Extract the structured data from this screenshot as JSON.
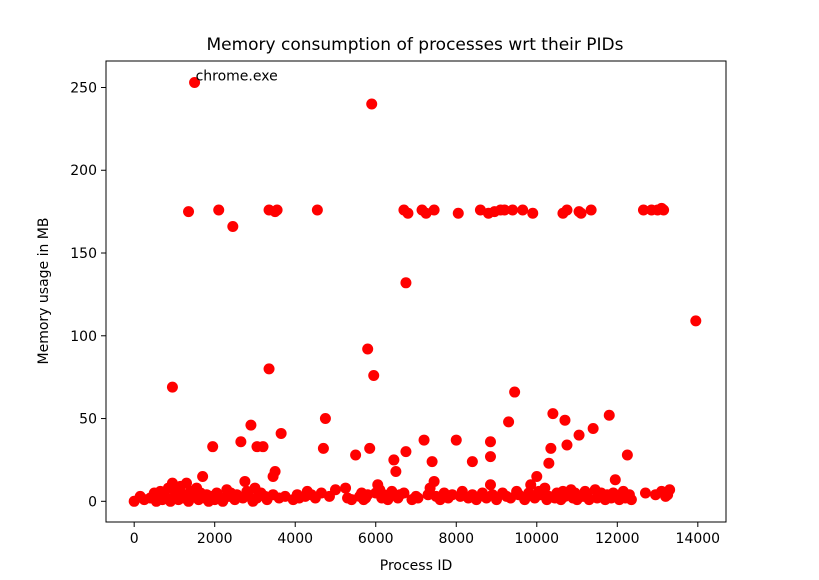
{
  "chart_data": {
    "type": "scatter",
    "title": "Memory consumption of processes wrt their PIDs",
    "xlabel": "Process ID",
    "ylabel": "Memory usage in MB",
    "xlim": [
      -700,
      14700
    ],
    "ylim": [
      -12.5,
      266
    ],
    "xticks": [
      0,
      2000,
      4000,
      6000,
      8000,
      10000,
      12000,
      14000
    ],
    "yticks": [
      0,
      50,
      100,
      150,
      200,
      250
    ],
    "grid": false,
    "marker_color": "#ff0000",
    "annotations": [
      {
        "text": "chrome.exe",
        "x": 1500,
        "y": 253
      }
    ],
    "series": [
      {
        "points": [
          [
            1500,
            253
          ],
          [
            5900,
            240
          ],
          [
            1350,
            175
          ],
          [
            2100,
            176
          ],
          [
            2450,
            166
          ],
          [
            3350,
            176
          ],
          [
            3500,
            175
          ],
          [
            3550,
            176
          ],
          [
            4550,
            176
          ],
          [
            6700,
            176
          ],
          [
            6800,
            174
          ],
          [
            7150,
            176
          ],
          [
            7250,
            174
          ],
          [
            7450,
            176
          ],
          [
            8050,
            174
          ],
          [
            8600,
            176
          ],
          [
            8800,
            174
          ],
          [
            8950,
            175
          ],
          [
            9100,
            176
          ],
          [
            9200,
            176
          ],
          [
            9400,
            176
          ],
          [
            9650,
            176
          ],
          [
            9900,
            174
          ],
          [
            10650,
            174
          ],
          [
            10750,
            176
          ],
          [
            11050,
            175
          ],
          [
            11100,
            174
          ],
          [
            11350,
            176
          ],
          [
            12650,
            176
          ],
          [
            12850,
            176
          ],
          [
            13000,
            176
          ],
          [
            13100,
            177
          ],
          [
            13150,
            176
          ],
          [
            6750,
            132
          ],
          [
            13950,
            109
          ],
          [
            5800,
            92
          ],
          [
            5950,
            76
          ],
          [
            950,
            69
          ],
          [
            3350,
            80
          ],
          [
            9450,
            66
          ],
          [
            10400,
            53
          ],
          [
            11800,
            52
          ],
          [
            4750,
            50
          ],
          [
            10700,
            49
          ],
          [
            9300,
            48
          ],
          [
            2900,
            46
          ],
          [
            11400,
            44
          ],
          [
            3650,
            41
          ],
          [
            11050,
            40
          ],
          [
            7200,
            37
          ],
          [
            8000,
            37
          ],
          [
            2650,
            36
          ],
          [
            8850,
            36
          ],
          [
            10750,
            34
          ],
          [
            1950,
            33
          ],
          [
            3050,
            33
          ],
          [
            3200,
            33
          ],
          [
            4700,
            32
          ],
          [
            5850,
            32
          ],
          [
            10350,
            32
          ],
          [
            6750,
            30
          ],
          [
            5500,
            28
          ],
          [
            8850,
            27
          ],
          [
            12250,
            28
          ],
          [
            6450,
            25
          ],
          [
            7400,
            24
          ],
          [
            8400,
            24
          ],
          [
            10300,
            23
          ],
          [
            3500,
            18
          ],
          [
            6500,
            18
          ],
          [
            3450,
            15
          ],
          [
            1700,
            15
          ],
          [
            10000,
            15
          ],
          [
            11950,
            13
          ],
          [
            2750,
            12
          ],
          [
            5250,
            8
          ],
          [
            7450,
            12
          ],
          [
            9850,
            10
          ],
          [
            6050,
            10
          ],
          [
            0,
            0
          ],
          [
            150,
            3
          ],
          [
            250,
            1
          ],
          [
            400,
            2
          ],
          [
            500,
            5
          ],
          [
            550,
            0
          ],
          [
            600,
            3
          ],
          [
            650,
            6
          ],
          [
            700,
            1
          ],
          [
            750,
            4
          ],
          [
            800,
            2
          ],
          [
            850,
            8
          ],
          [
            900,
            0
          ],
          [
            950,
            11
          ],
          [
            1000,
            3
          ],
          [
            1050,
            6
          ],
          [
            1100,
            1
          ],
          [
            1150,
            9
          ],
          [
            1200,
            2
          ],
          [
            1250,
            4
          ],
          [
            1300,
            11
          ],
          [
            1350,
            0
          ],
          [
            1400,
            6
          ],
          [
            1450,
            3
          ],
          [
            1550,
            8
          ],
          [
            1600,
            1
          ],
          [
            1650,
            5
          ],
          [
            1750,
            2
          ],
          [
            1800,
            4
          ],
          [
            1850,
            0
          ],
          [
            1900,
            3
          ],
          [
            2000,
            1
          ],
          [
            2050,
            5
          ],
          [
            2150,
            2
          ],
          [
            2200,
            0
          ],
          [
            2300,
            7
          ],
          [
            2350,
            3
          ],
          [
            2400,
            5
          ],
          [
            2500,
            1
          ],
          [
            2550,
            4
          ],
          [
            2700,
            2
          ],
          [
            2800,
            6
          ],
          [
            2850,
            3
          ],
          [
            2950,
            0
          ],
          [
            3000,
            8
          ],
          [
            3050,
            2
          ],
          [
            3150,
            5
          ],
          [
            3250,
            3
          ],
          [
            3300,
            1
          ],
          [
            3450,
            4
          ],
          [
            3600,
            2
          ],
          [
            3750,
            3
          ],
          [
            3950,
            1
          ],
          [
            4050,
            4
          ],
          [
            4100,
            2
          ],
          [
            4250,
            3
          ],
          [
            4300,
            6
          ],
          [
            4400,
            4
          ],
          [
            4500,
            2
          ],
          [
            4650,
            5
          ],
          [
            4850,
            3
          ],
          [
            5000,
            7
          ],
          [
            5300,
            2
          ],
          [
            5400,
            1
          ],
          [
            5600,
            3
          ],
          [
            5650,
            5
          ],
          [
            5700,
            1
          ],
          [
            5750,
            2
          ],
          [
            5800,
            4
          ],
          [
            6000,
            5
          ],
          [
            6100,
            7
          ],
          [
            6150,
            2
          ],
          [
            6200,
            4
          ],
          [
            6300,
            1
          ],
          [
            6350,
            3
          ],
          [
            6400,
            6
          ],
          [
            6550,
            2
          ],
          [
            6600,
            4
          ],
          [
            6700,
            5
          ],
          [
            6900,
            1
          ],
          [
            7000,
            3
          ],
          [
            7050,
            2
          ],
          [
            7300,
            4
          ],
          [
            7350,
            8
          ],
          [
            7500,
            3
          ],
          [
            7600,
            1
          ],
          [
            7700,
            5
          ],
          [
            7800,
            2
          ],
          [
            7900,
            4
          ],
          [
            8100,
            3
          ],
          [
            8150,
            6
          ],
          [
            8300,
            2
          ],
          [
            8400,
            4
          ],
          [
            8500,
            1
          ],
          [
            8650,
            5
          ],
          [
            8700,
            3
          ],
          [
            8750,
            2
          ],
          [
            8850,
            10
          ],
          [
            8900,
            4
          ],
          [
            9000,
            1
          ],
          [
            9150,
            5
          ],
          [
            9250,
            3
          ],
          [
            9350,
            2
          ],
          [
            9500,
            6
          ],
          [
            9550,
            4
          ],
          [
            9700,
            1
          ],
          [
            9750,
            3
          ],
          [
            9800,
            5
          ],
          [
            9950,
            2
          ],
          [
            10050,
            6
          ],
          [
            10100,
            4
          ],
          [
            10200,
            8
          ],
          [
            10250,
            1
          ],
          [
            10300,
            3
          ],
          [
            10450,
            2
          ],
          [
            10500,
            5
          ],
          [
            10550,
            4
          ],
          [
            10600,
            1
          ],
          [
            10650,
            6
          ],
          [
            10700,
            3
          ],
          [
            10800,
            4
          ],
          [
            10850,
            7
          ],
          [
            10900,
            2
          ],
          [
            10950,
            5
          ],
          [
            11000,
            1
          ],
          [
            11150,
            3
          ],
          [
            11200,
            6
          ],
          [
            11250,
            4
          ],
          [
            11300,
            1
          ],
          [
            11450,
            7
          ],
          [
            11500,
            2
          ],
          [
            11600,
            5
          ],
          [
            11650,
            3
          ],
          [
            11700,
            1
          ],
          [
            11750,
            4
          ],
          [
            11850,
            2
          ],
          [
            11900,
            5
          ],
          [
            11950,
            4
          ],
          [
            12050,
            1
          ],
          [
            12100,
            3
          ],
          [
            12150,
            6
          ],
          [
            12200,
            2
          ],
          [
            12300,
            4
          ],
          [
            12350,
            1
          ],
          [
            12700,
            5
          ],
          [
            12950,
            4
          ],
          [
            13100,
            6
          ],
          [
            13200,
            3
          ],
          [
            13300,
            7
          ],
          [
            13250,
            4
          ]
        ]
      }
    ]
  }
}
